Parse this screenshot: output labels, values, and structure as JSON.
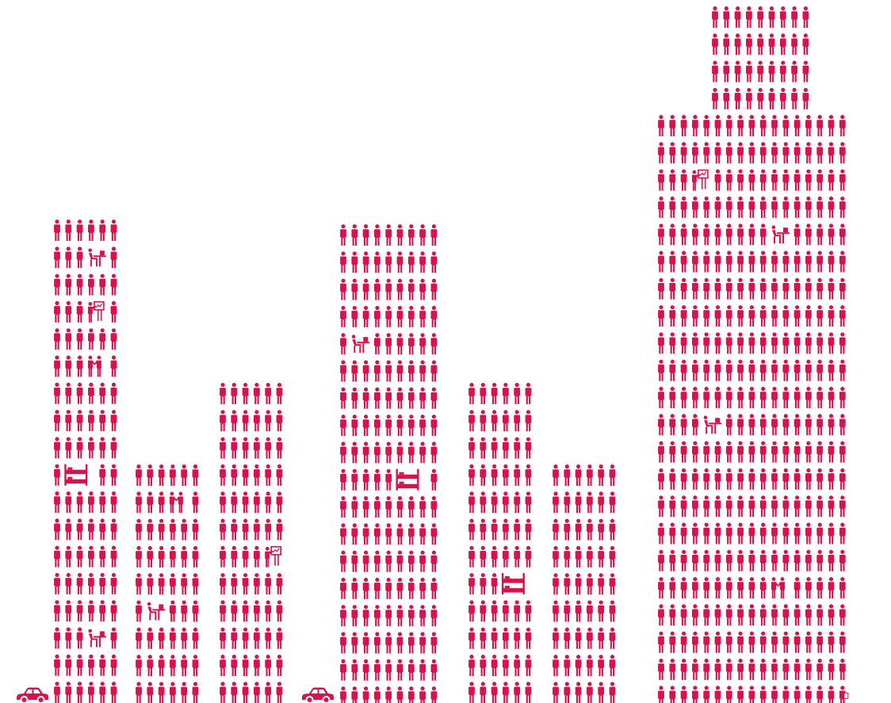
{
  "colors": {
    "figure": "#D8124A",
    "background": "#FFFFFF"
  },
  "icons": {
    "person": "person-icon",
    "car": "car-icon",
    "desk_worker": "desk-worker-icon",
    "presenter": "presenter-icon",
    "handshake": "handshake-icon",
    "bunk_bed": "bunk-bed-icon",
    "person_with_paper": "person-paper-icon"
  },
  "buildings": [
    {
      "id": "building-1",
      "columns": 6,
      "rows": 18,
      "specials": [
        {
          "type": "desk_worker",
          "row": 1,
          "col": 3
        },
        {
          "type": "presenter",
          "row": 3,
          "col": 3
        },
        {
          "type": "handshake",
          "row": 5,
          "col": 3
        },
        {
          "type": "bunk_bed",
          "row": 9,
          "col": 1
        },
        {
          "type": "desk_worker",
          "row": 15,
          "col": 3
        }
      ]
    },
    {
      "id": "building-2",
      "columns": 6,
      "rows": 9,
      "specials": [
        {
          "type": "handshake",
          "row": 1,
          "col": 3
        },
        {
          "type": "desk_worker",
          "row": 5,
          "col": 1
        }
      ]
    },
    {
      "id": "building-3",
      "columns": 6,
      "rows": 12,
      "specials": [
        {
          "type": "presenter",
          "row": 6,
          "col": 4
        }
      ]
    },
    {
      "id": "building-4",
      "columns": 9,
      "rows": 18,
      "specials": [
        {
          "type": "desk_worker",
          "row": 4,
          "col": 1
        },
        {
          "type": "bunk_bed",
          "row": 9,
          "col": 5
        }
      ]
    },
    {
      "id": "building-5",
      "columns": 6,
      "rows": 12,
      "specials": [
        {
          "type": "bunk_bed",
          "row": 7,
          "col": 3
        }
      ]
    },
    {
      "id": "building-6",
      "columns": 6,
      "rows": 9,
      "specials": []
    },
    {
      "id": "building-7-tower",
      "columns": 17,
      "rows": 22,
      "specials": [
        {
          "type": "presenter",
          "row": 2,
          "col": 3
        },
        {
          "type": "desk_worker",
          "row": 4,
          "col": 10
        },
        {
          "type": "desk_worker",
          "row": 11,
          "col": 4
        },
        {
          "type": "handshake",
          "row": 17,
          "col": 10
        },
        {
          "type": "person_with_paper",
          "row": 21,
          "col": 16
        }
      ]
    },
    {
      "id": "building-7-crown",
      "columns": 9,
      "rows": 4,
      "specials": []
    }
  ],
  "cars": [
    {
      "id": "car-1"
    },
    {
      "id": "car-2"
    }
  ]
}
